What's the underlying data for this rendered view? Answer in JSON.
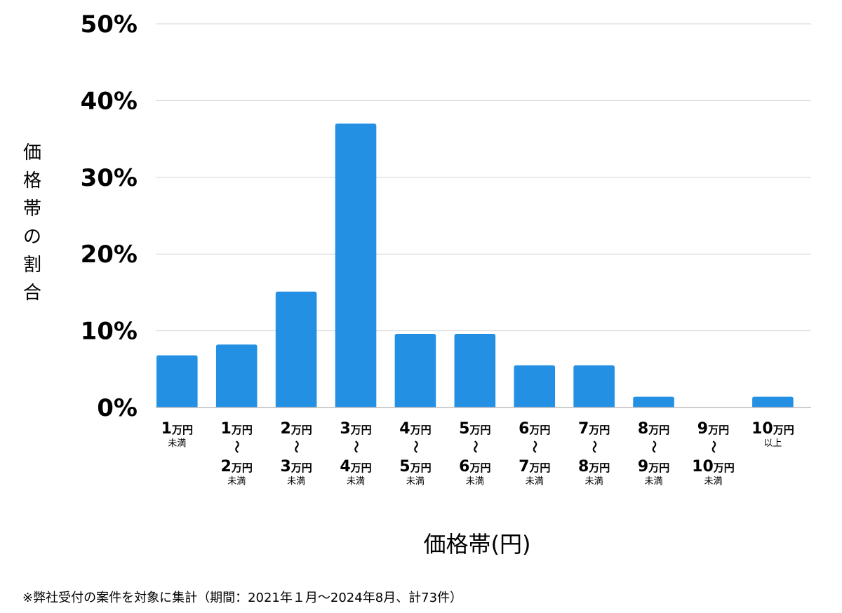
{
  "chart_data": {
    "type": "bar",
    "ylabel": "価格帯の割合",
    "xlabel": "価格帯(円)",
    "ylim": [
      0,
      50
    ],
    "yticks": [
      "0%",
      "10%",
      "20%",
      "30%",
      "40%",
      "50%"
    ],
    "grid": true,
    "bar_color": "#2490e4",
    "categories": [
      {
        "from": "1",
        "from_unit": "万円",
        "to": "",
        "to_unit": "",
        "suffix": "未満"
      },
      {
        "from": "1",
        "from_unit": "万円",
        "to": "2",
        "to_unit": "万円",
        "suffix": "未満"
      },
      {
        "from": "2",
        "from_unit": "万円",
        "to": "3",
        "to_unit": "万円",
        "suffix": "未満"
      },
      {
        "from": "3",
        "from_unit": "万円",
        "to": "4",
        "to_unit": "万円",
        "suffix": "未満"
      },
      {
        "from": "4",
        "from_unit": "万円",
        "to": "5",
        "to_unit": "万円",
        "suffix": "未満"
      },
      {
        "from": "5",
        "from_unit": "万円",
        "to": "6",
        "to_unit": "万円",
        "suffix": "未満"
      },
      {
        "from": "6",
        "from_unit": "万円",
        "to": "7",
        "to_unit": "万円",
        "suffix": "未満"
      },
      {
        "from": "7",
        "from_unit": "万円",
        "to": "8",
        "to_unit": "万円",
        "suffix": "未満"
      },
      {
        "from": "8",
        "from_unit": "万円",
        "to": "9",
        "to_unit": "万円",
        "suffix": "未満"
      },
      {
        "from": "9",
        "from_unit": "万円",
        "to": "10",
        "to_unit": "万円",
        "suffix": "未満"
      },
      {
        "from": "10",
        "from_unit": "万円",
        "to": "",
        "to_unit": "",
        "suffix": "以上"
      }
    ],
    "range_mark": "〜",
    "values": [
      6.8,
      8.2,
      15.1,
      37.0,
      9.6,
      9.6,
      5.5,
      5.5,
      1.4,
      0.0,
      1.4
    ]
  },
  "footnote": "※弊社受付の案件を対象に集計（期間：2021年１月〜2024年8月、計73件）"
}
